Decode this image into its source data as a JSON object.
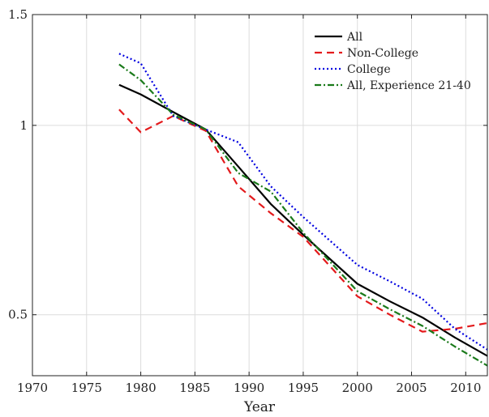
{
  "chart_data": {
    "type": "line",
    "title": "",
    "xlabel": "Year",
    "ylabel": "",
    "xlim": [
      1970,
      2012
    ],
    "ylim": [
      0.4,
      1.5
    ],
    "yscale": "log",
    "grid": true,
    "legend_position": "top-right",
    "x_ticks": [
      1970,
      1975,
      1980,
      1985,
      1990,
      1995,
      2000,
      2005,
      2010
    ],
    "x_tick_labels": [
      "1970",
      "1975",
      "1980",
      "1985",
      "1990",
      "1995",
      "2000",
      "2005",
      "2010"
    ],
    "y_ticks": [
      0.5,
      1,
      1.5
    ],
    "y_tick_labels": [
      "0.5",
      "1",
      "1.5"
    ],
    "series": [
      {
        "name": "All",
        "color": "#000000",
        "style": "solid",
        "x": [
          1978,
          1980,
          1983,
          1986,
          1989,
          1992,
          1995,
          2000,
          2003,
          2006,
          2009,
          2012
        ],
        "y": [
          1.16,
          1.12,
          1.05,
          0.985,
          0.86,
          0.75,
          0.67,
          0.56,
          0.525,
          0.495,
          0.46,
          0.43
        ]
      },
      {
        "name": "Non-College",
        "color": "#e31a1c",
        "style": "dashed",
        "x": [
          1978,
          1980,
          1983,
          1986,
          1989,
          1992,
          1995,
          2000,
          2003,
          2006,
          2009,
          2012
        ],
        "y": [
          1.06,
          0.975,
          1.035,
          0.98,
          0.8,
          0.725,
          0.665,
          0.535,
          0.5,
          0.47,
          0.475,
          0.485
        ]
      },
      {
        "name": "College",
        "color": "#0000e0",
        "style": "dotted",
        "x": [
          1978,
          1980,
          1983,
          1986,
          1989,
          1992,
          1995,
          2000,
          2003,
          2006,
          2009,
          2012
        ],
        "y": [
          1.3,
          1.255,
          1.035,
          0.985,
          0.94,
          0.8,
          0.715,
          0.6,
          0.565,
          0.53,
          0.475,
          0.44
        ]
      },
      {
        "name": "All, Experience 21-40",
        "color": "#1a7a1a",
        "style": "dashdot",
        "x": [
          1978,
          1980,
          1983,
          1986,
          1989,
          1992,
          1995,
          2000,
          2003,
          2006,
          2009,
          2012
        ],
        "y": [
          1.25,
          1.18,
          1.04,
          0.985,
          0.84,
          0.785,
          0.675,
          0.545,
          0.51,
          0.48,
          0.445,
          0.415
        ]
      }
    ]
  }
}
